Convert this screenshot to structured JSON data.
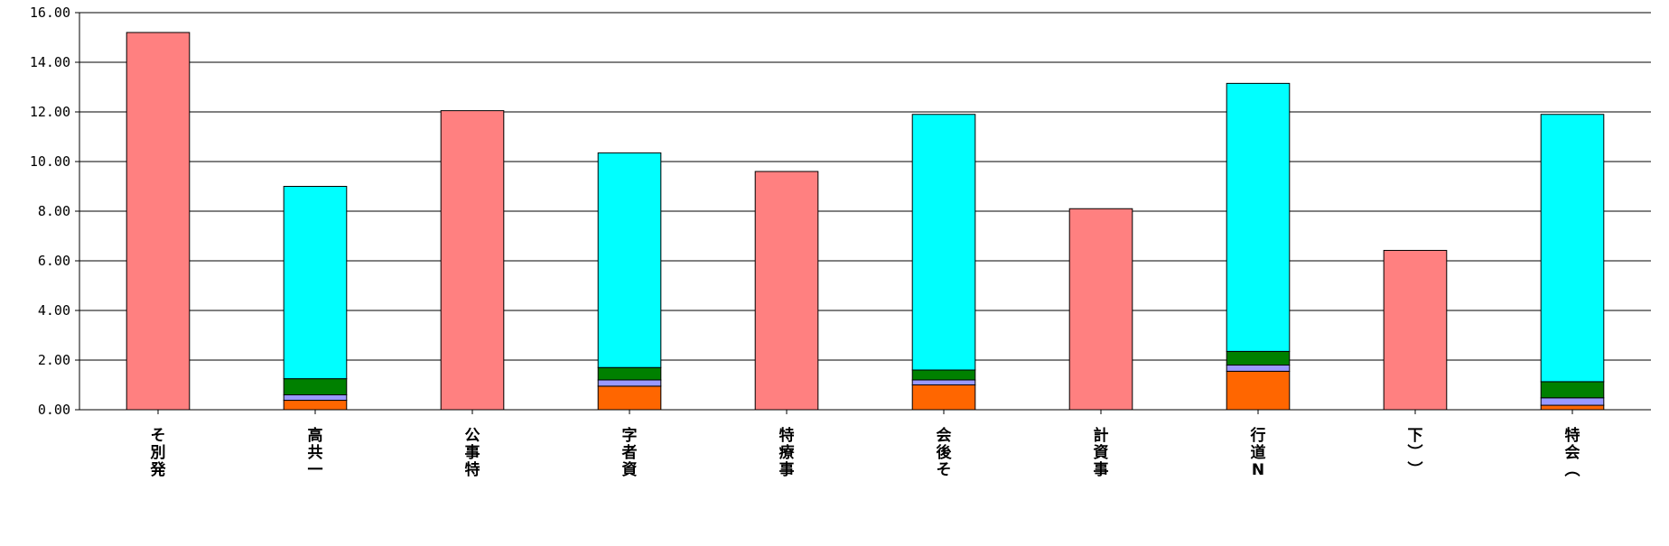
{
  "chart_data": {
    "type": "bar",
    "stacked": true,
    "ylim": [
      0,
      16
    ],
    "yticks": [
      "0.00",
      "2.00",
      "4.00",
      "6.00",
      "8.00",
      "10.00",
      "12.00",
      "14.00",
      "16.00"
    ],
    "grid": true,
    "categories": [
      "そ別発",
      "高共一",
      "公事特",
      "字者資",
      "特療事",
      "会後そ",
      "計資事",
      "行道N",
      "下））",
      "特会（"
    ],
    "series": [
      {
        "color": "#FF8080",
        "values": [
          15.2,
          0,
          12.05,
          0,
          9.6,
          0,
          8.1,
          0,
          6.42,
          0
        ]
      },
      {
        "color": "#FF6600",
        "values": [
          0,
          0.38,
          0,
          0.95,
          0,
          1.0,
          0,
          1.55,
          0,
          0.18
        ]
      },
      {
        "color": "#9999FF",
        "values": [
          0,
          0.22,
          0,
          0.25,
          0,
          0.2,
          0,
          0.25,
          0,
          0.3
        ]
      },
      {
        "color": "#008000",
        "values": [
          0,
          0.65,
          0,
          0.5,
          0,
          0.4,
          0,
          0.55,
          0,
          0.65
        ]
      },
      {
        "color": "#00FFFF",
        "values": [
          0,
          7.75,
          0,
          8.65,
          0,
          10.3,
          0,
          10.8,
          0,
          10.77
        ]
      }
    ]
  }
}
